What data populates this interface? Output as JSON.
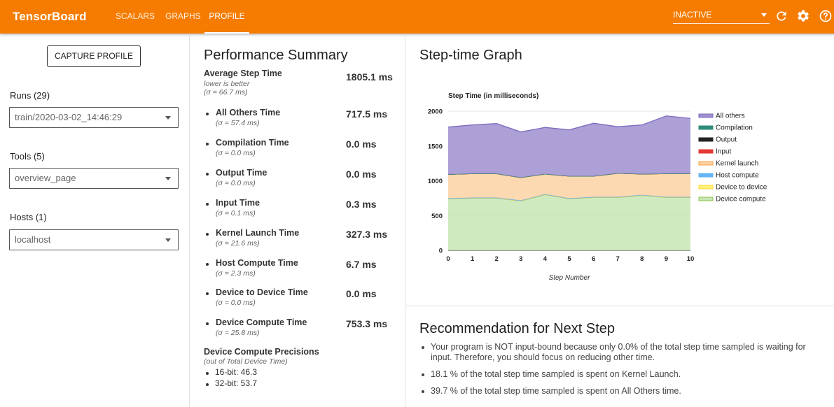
{
  "app": {
    "title": "TensorBoard"
  },
  "nav": {
    "tabs": [
      "SCALARS",
      "GRAPHS",
      "PROFILE"
    ],
    "active": "PROFILE"
  },
  "topbar": {
    "run_selector": "INACTIVE",
    "icons": [
      "refresh-icon",
      "settings-icon",
      "help-icon"
    ]
  },
  "sidebar": {
    "capture_button": "CAPTURE PROFILE",
    "runs_label": "Runs (29)",
    "runs_value": "train/2020-03-02_14:46:29",
    "tools_label": "Tools (5)",
    "tools_value": "overview_page",
    "hosts_label": "Hosts (1)",
    "hosts_value": "localhost"
  },
  "perf": {
    "title": "Performance Summary",
    "avg": {
      "name": "Average Step Time",
      "note": "lower is better",
      "sigma": "(σ = 66.7 ms)",
      "value": "1805.1 ms"
    },
    "metrics": [
      {
        "name": "All Others Time",
        "sigma": "(σ = 57.4 ms)",
        "value": "717.5 ms"
      },
      {
        "name": "Compilation Time",
        "sigma": "(σ = 0.0 ms)",
        "value": "0.0 ms"
      },
      {
        "name": "Output Time",
        "sigma": "(σ = 0.0 ms)",
        "value": "0.0 ms"
      },
      {
        "name": "Input Time",
        "sigma": "(σ = 0.1 ms)",
        "value": "0.3 ms"
      },
      {
        "name": "Kernel Launch Time",
        "sigma": "(σ = 21.6 ms)",
        "value": "327.3 ms"
      },
      {
        "name": "Host Compute Time",
        "sigma": "(σ = 2.3 ms)",
        "value": "6.7 ms"
      },
      {
        "name": "Device to Device Time",
        "sigma": "(σ = 0.0 ms)",
        "value": "0.0 ms"
      },
      {
        "name": "Device Compute Time",
        "sigma": "(σ = 25.8 ms)",
        "value": "753.3 ms"
      }
    ],
    "precisions": {
      "title": "Device Compute Precisions",
      "note": "(out of Total Device Time)",
      "items": [
        "16-bit: 46.3",
        "32-bit: 53.7"
      ]
    }
  },
  "graph": {
    "title": "Step-time Graph"
  },
  "chart_data": {
    "type": "area",
    "title": "Step Time (in milliseconds)",
    "xlabel": "Step Number",
    "ylabel": "",
    "x": [
      0,
      1,
      2,
      3,
      4,
      5,
      6,
      7,
      8,
      9,
      10
    ],
    "ylim": [
      0,
      2000
    ],
    "yticks": [
      0,
      500,
      1000,
      1500,
      2000
    ],
    "stacked": true,
    "legend_position": "right",
    "series": [
      {
        "name": "All others",
        "color": "#9e8fd0",
        "line": "#7e6bbf",
        "values": [
          680,
          700,
          720,
          655,
          670,
          665,
          760,
          670,
          705,
          830,
          795
        ]
      },
      {
        "name": "Compilation",
        "color": "#2e8b7a",
        "line": "#2e8b7a",
        "values": [
          0,
          0,
          0,
          0,
          0,
          0,
          0,
          0,
          0,
          0,
          0
        ]
      },
      {
        "name": "Output",
        "color": "#222222",
        "line": "#222222",
        "values": [
          0,
          0,
          0,
          0,
          0,
          0,
          0,
          0,
          0,
          0,
          0
        ]
      },
      {
        "name": "Input",
        "color": "#e53935",
        "line": "#e53935",
        "values": [
          0,
          0,
          0,
          0,
          0,
          0,
          0,
          0,
          0,
          0,
          0
        ]
      },
      {
        "name": "Kernel launch",
        "color": "#fbd2a2",
        "line": "#f5a54a",
        "values": [
          345,
          345,
          345,
          330,
          290,
          320,
          300,
          340,
          300,
          335,
          335
        ]
      },
      {
        "name": "Host compute",
        "color": "#64b5f6",
        "line": "#64b5f6",
        "values": [
          7,
          7,
          7,
          7,
          7,
          7,
          7,
          7,
          7,
          7,
          7
        ]
      },
      {
        "name": "Device to device",
        "color": "#fff176",
        "line": "#fdd835",
        "values": [
          0,
          0,
          0,
          0,
          0,
          0,
          0,
          0,
          0,
          0,
          0
        ]
      },
      {
        "name": "Device compute",
        "color": "#c8e6b5",
        "line": "#8bc34a",
        "values": [
          740,
          750,
          750,
          710,
          800,
          740,
          760,
          760,
          790,
          760,
          760
        ]
      }
    ]
  },
  "recommendation": {
    "title": "Recommendation for Next Step",
    "items": [
      "Your program is NOT input-bound because only 0.0% of the total step time sampled is waiting for input. Therefore, you should focus on reducing other time.",
      "18.1 % of the total step time sampled is spent on Kernel Launch.",
      "39.7 % of the total step time sampled is spent on All Others time."
    ]
  }
}
